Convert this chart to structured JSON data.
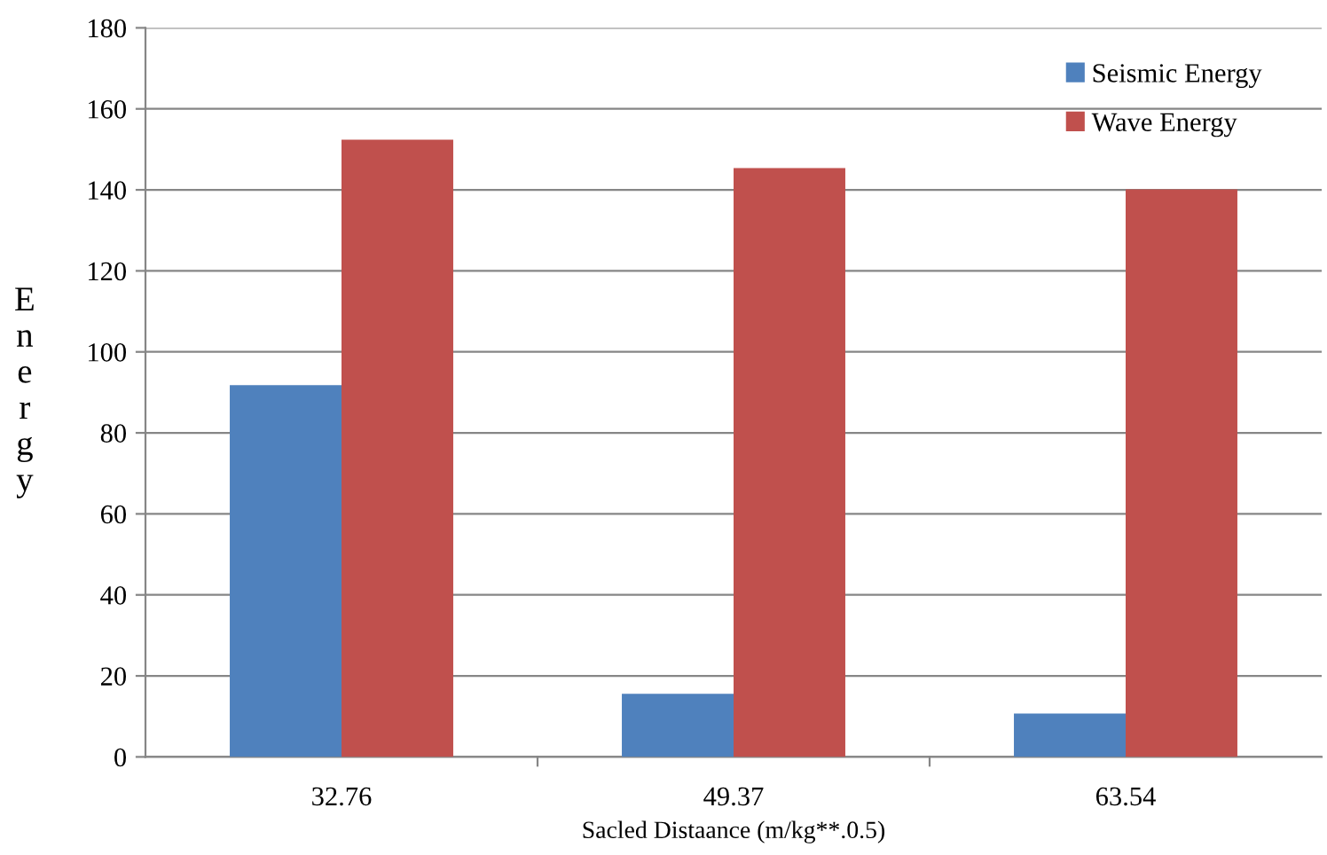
{
  "chart_data": {
    "type": "bar",
    "xlabel": "Sacled Distaance (m/kg**.0.5)",
    "ylabel": "Energy",
    "categories": [
      "32.76",
      "49.37",
      "63.54"
    ],
    "series": [
      {
        "name": "Seismic Energy",
        "color": "#4f81bd",
        "values": [
          91.8,
          15.6,
          10.7
        ]
      },
      {
        "name": "Wave Energy",
        "color": "#c0504d",
        "values": [
          152.4,
          145.4,
          140.1
        ]
      }
    ],
    "ylim": [
      0,
      180
    ],
    "yticks": [
      0,
      20,
      40,
      60,
      80,
      100,
      120,
      140,
      160,
      180
    ],
    "grid": "y",
    "legend": "top right"
  }
}
